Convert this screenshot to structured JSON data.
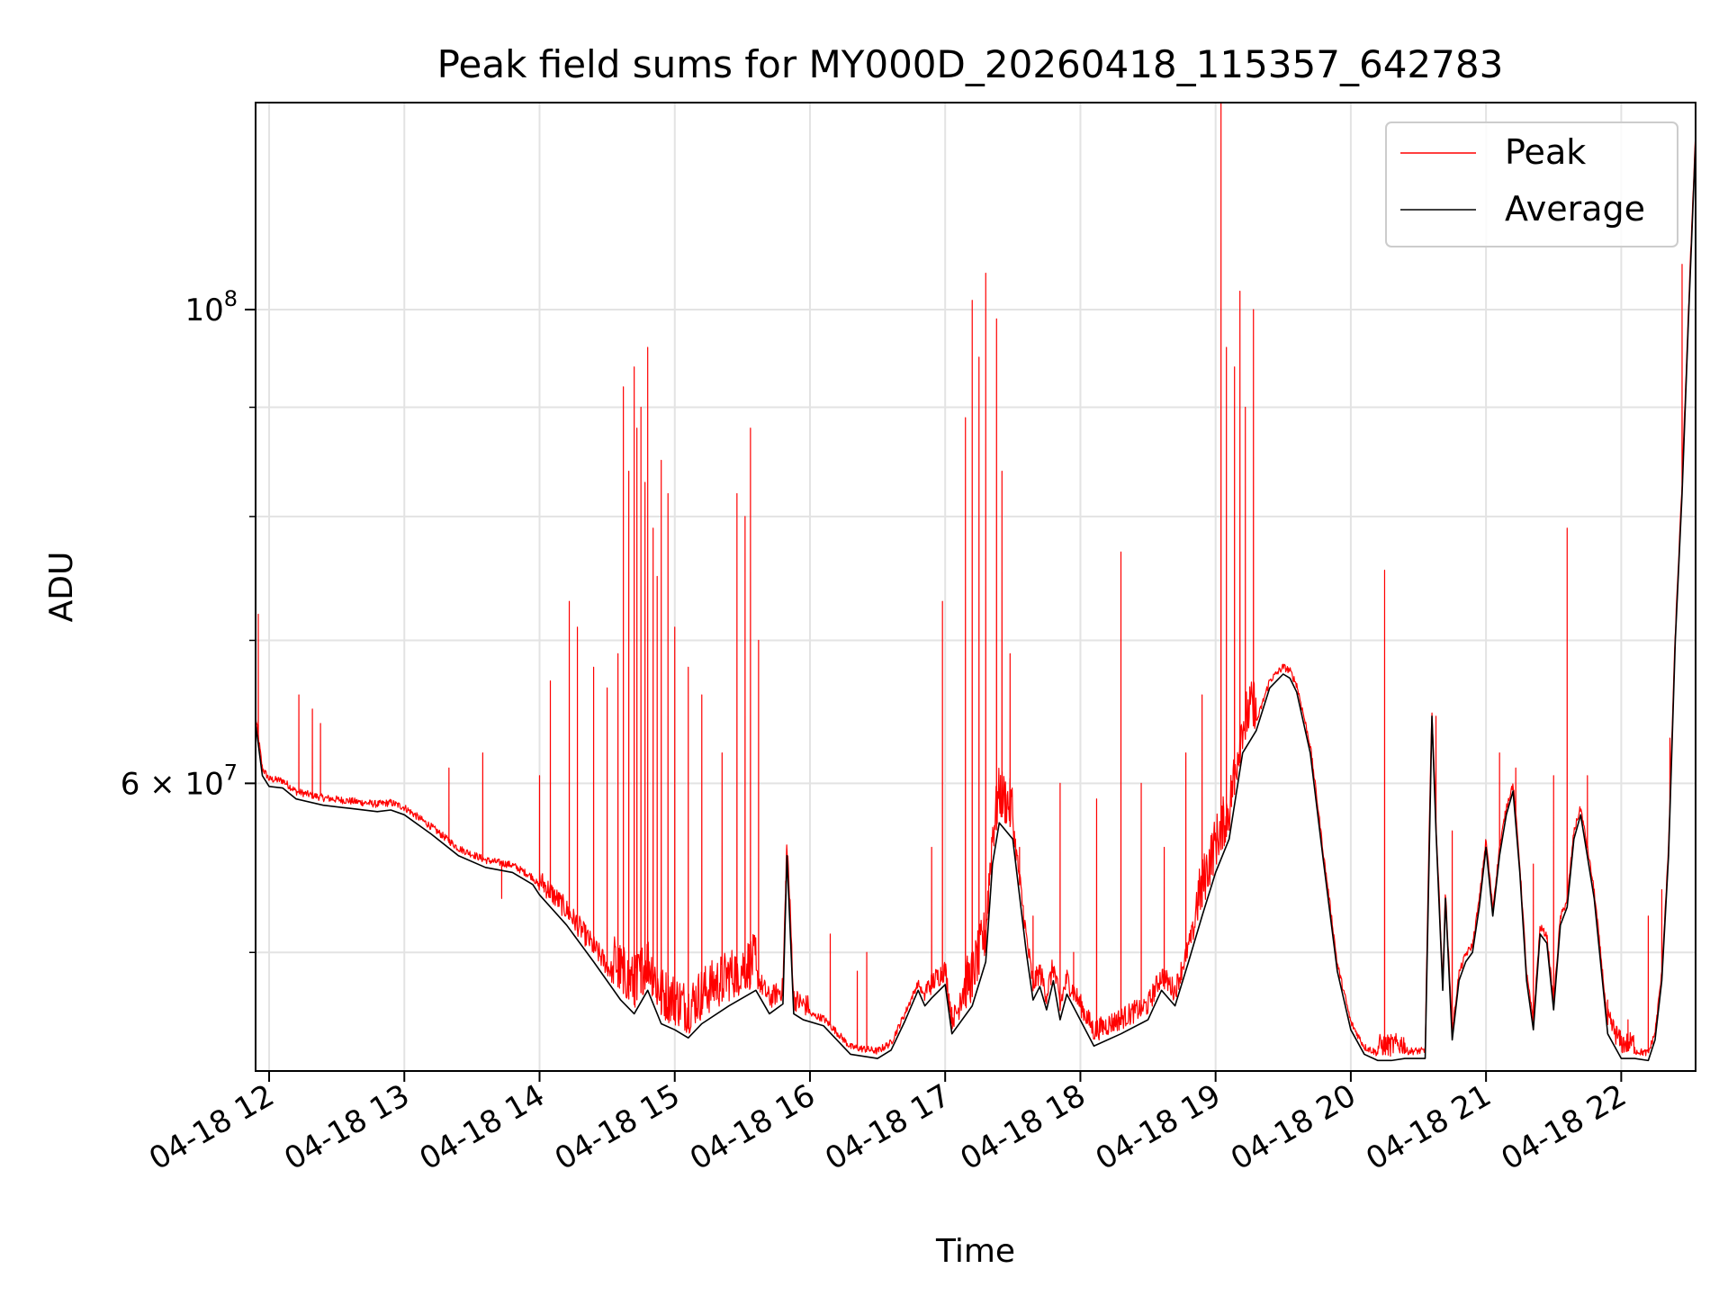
{
  "chart_data": {
    "type": "line",
    "title": "Peak field sums for MY000D_20260418_115357_642783",
    "xlabel": "Time",
    "ylabel": "ADU",
    "yscale": "log",
    "xlim": [
      11.9,
      22.55
    ],
    "ylim": [
      44000000,
      125000000
    ],
    "x_ticks": [
      {
        "value": 12,
        "label": "04-18 12"
      },
      {
        "value": 13,
        "label": "04-18 13"
      },
      {
        "value": 14,
        "label": "04-18 14"
      },
      {
        "value": 15,
        "label": "04-18 15"
      },
      {
        "value": 16,
        "label": "04-18 16"
      },
      {
        "value": 17,
        "label": "04-18 17"
      },
      {
        "value": 18,
        "label": "04-18 18"
      },
      {
        "value": 19,
        "label": "04-18 19"
      },
      {
        "value": 20,
        "label": "04-18 20"
      },
      {
        "value": 21,
        "label": "04-18 21"
      },
      {
        "value": 22,
        "label": "04-18 22"
      }
    ],
    "y_major_ticks": [
      {
        "value": 100000000,
        "base": "10",
        "exp": "8"
      },
      {
        "value": 60000000,
        "base": "6 × 10",
        "exp": "7"
      }
    ],
    "y_minor_ticks": [
      50000000,
      70000000,
      80000000,
      90000000
    ],
    "grid": true,
    "legend": {
      "position": "top-right",
      "entries": [
        {
          "label": "Peak",
          "color": "#ff0000"
        },
        {
          "label": "Average",
          "color": "#000000"
        }
      ]
    },
    "series": [
      {
        "name": "Average",
        "color": "#000000",
        "x": [
          11.9,
          11.95,
          12.0,
          12.1,
          12.2,
          12.4,
          12.6,
          12.8,
          12.9,
          13.0,
          13.2,
          13.4,
          13.6,
          13.8,
          13.95,
          14.0,
          14.2,
          14.4,
          14.6,
          14.7,
          14.8,
          14.9,
          15.0,
          15.1,
          15.2,
          15.4,
          15.6,
          15.7,
          15.8,
          15.83,
          15.88,
          15.95,
          16.1,
          16.3,
          16.5,
          16.6,
          16.7,
          16.8,
          16.85,
          16.9,
          17.0,
          17.05,
          17.2,
          17.3,
          17.35,
          17.4,
          17.5,
          17.6,
          17.65,
          17.7,
          17.75,
          17.8,
          17.85,
          17.9,
          18.1,
          18.3,
          18.5,
          18.6,
          18.7,
          18.8,
          18.9,
          19.0,
          19.1,
          19.2,
          19.3,
          19.4,
          19.5,
          19.55,
          19.6,
          19.7,
          19.8,
          19.9,
          20.0,
          20.1,
          20.2,
          20.3,
          20.4,
          20.55,
          20.6,
          20.63,
          20.68,
          20.7,
          20.75,
          20.8,
          20.85,
          20.9,
          20.95,
          21.0,
          21.05,
          21.1,
          21.15,
          21.2,
          21.25,
          21.3,
          21.35,
          21.4,
          21.45,
          21.5,
          21.55,
          21.6,
          21.65,
          21.7,
          21.8,
          21.9,
          22.0,
          22.1,
          22.2,
          22.25,
          22.3,
          22.35,
          22.4,
          22.45,
          22.5,
          22.55
        ],
        "values": [
          64000000,
          60500000,
          59800000,
          59700000,
          59000000,
          58600000,
          58400000,
          58200000,
          58300000,
          58000000,
          56800000,
          55500000,
          54800000,
          54500000,
          53800000,
          53200000,
          51500000,
          49500000,
          47500000,
          46800000,
          48000000,
          46300000,
          46000000,
          45600000,
          46300000,
          47200000,
          48000000,
          46800000,
          47300000,
          55500000,
          46800000,
          46500000,
          46200000,
          44800000,
          44600000,
          45000000,
          46400000,
          48000000,
          47200000,
          47600000,
          48300000,
          45800000,
          47200000,
          49500000,
          55000000,
          57500000,
          56500000,
          50000000,
          47500000,
          48200000,
          47000000,
          48500000,
          46500000,
          47800000,
          45200000,
          45800000,
          46500000,
          48000000,
          47200000,
          49500000,
          52000000,
          54500000,
          56500000,
          62000000,
          63500000,
          66500000,
          67500000,
          67200000,
          66200000,
          62000000,
          55000000,
          49000000,
          46000000,
          44800000,
          44500000,
          44500000,
          44600000,
          44600000,
          64500000,
          57000000,
          48000000,
          53000000,
          45500000,
          48500000,
          49500000,
          50000000,
          52500000,
          56000000,
          52000000,
          55500000,
          58000000,
          59500000,
          54500000,
          48500000,
          46000000,
          51000000,
          50500000,
          47000000,
          51500000,
          52500000,
          56500000,
          58000000,
          53000000,
          45800000,
          44600000,
          44600000,
          44500000,
          45500000,
          48500000,
          55500000,
          70000000,
          82000000,
          100000000,
          120000000
        ]
      },
      {
        "name": "Peak",
        "color": "#ff0000",
        "spikes": [
          [
            11.92,
            72000000
          ],
          [
            12.22,
            66000000
          ],
          [
            12.32,
            65000000
          ],
          [
            12.38,
            64000000
          ],
          [
            13.33,
            61000000
          ],
          [
            13.58,
            62000000
          ],
          [
            13.72,
            53000000
          ],
          [
            14.0,
            60500000
          ],
          [
            14.08,
            67000000
          ],
          [
            14.22,
            73000000
          ],
          [
            14.28,
            71000000
          ],
          [
            14.4,
            68000000
          ],
          [
            14.5,
            66500000
          ],
          [
            14.58,
            69000000
          ],
          [
            14.62,
            92000000
          ],
          [
            14.66,
            84000000
          ],
          [
            14.7,
            94000000
          ],
          [
            14.72,
            88000000
          ],
          [
            14.75,
            90000000
          ],
          [
            14.78,
            83000000
          ],
          [
            14.8,
            96000000
          ],
          [
            14.84,
            79000000
          ],
          [
            14.87,
            75000000
          ],
          [
            14.9,
            85000000
          ],
          [
            14.95,
            82000000
          ],
          [
            15.0,
            71000000
          ],
          [
            15.1,
            68000000
          ],
          [
            15.2,
            66000000
          ],
          [
            15.35,
            62000000
          ],
          [
            15.46,
            82000000
          ],
          [
            15.52,
            80000000
          ],
          [
            15.56,
            88000000
          ],
          [
            15.62,
            70000000
          ],
          [
            15.82,
            54000000
          ],
          [
            16.15,
            51000000
          ],
          [
            16.35,
            49000000
          ],
          [
            16.42,
            50000000
          ],
          [
            16.9,
            56000000
          ],
          [
            16.98,
            73000000
          ],
          [
            17.15,
            89000000
          ],
          [
            17.2,
            101000000
          ],
          [
            17.25,
            95000000
          ],
          [
            17.3,
            104000000
          ],
          [
            17.38,
            99000000
          ],
          [
            17.42,
            84000000
          ],
          [
            17.48,
            69000000
          ],
          [
            17.55,
            56000000
          ],
          [
            17.65,
            52000000
          ],
          [
            17.85,
            60000000
          ],
          [
            17.95,
            50000000
          ],
          [
            18.12,
            59000000
          ],
          [
            18.3,
            77000000
          ],
          [
            18.45,
            60000000
          ],
          [
            18.62,
            56000000
          ],
          [
            18.78,
            62000000
          ],
          [
            18.9,
            66000000
          ],
          [
            19.04,
            125000000
          ],
          [
            19.08,
            96000000
          ],
          [
            19.14,
            94000000
          ],
          [
            19.18,
            102000000
          ],
          [
            19.22,
            90000000
          ],
          [
            19.28,
            100000000
          ],
          [
            20.25,
            75500000
          ],
          [
            20.63,
            64500000
          ],
          [
            20.75,
            57000000
          ],
          [
            21.1,
            62000000
          ],
          [
            21.22,
            61000000
          ],
          [
            21.35,
            55000000
          ],
          [
            21.5,
            60500000
          ],
          [
            21.6,
            79000000
          ],
          [
            21.75,
            60500000
          ],
          [
            21.9,
            47500000
          ],
          [
            22.05,
            46500000
          ],
          [
            22.2,
            52000000
          ],
          [
            22.3,
            53500000
          ],
          [
            22.36,
            63000000
          ],
          [
            22.45,
            105000000
          ]
        ]
      }
    ]
  }
}
